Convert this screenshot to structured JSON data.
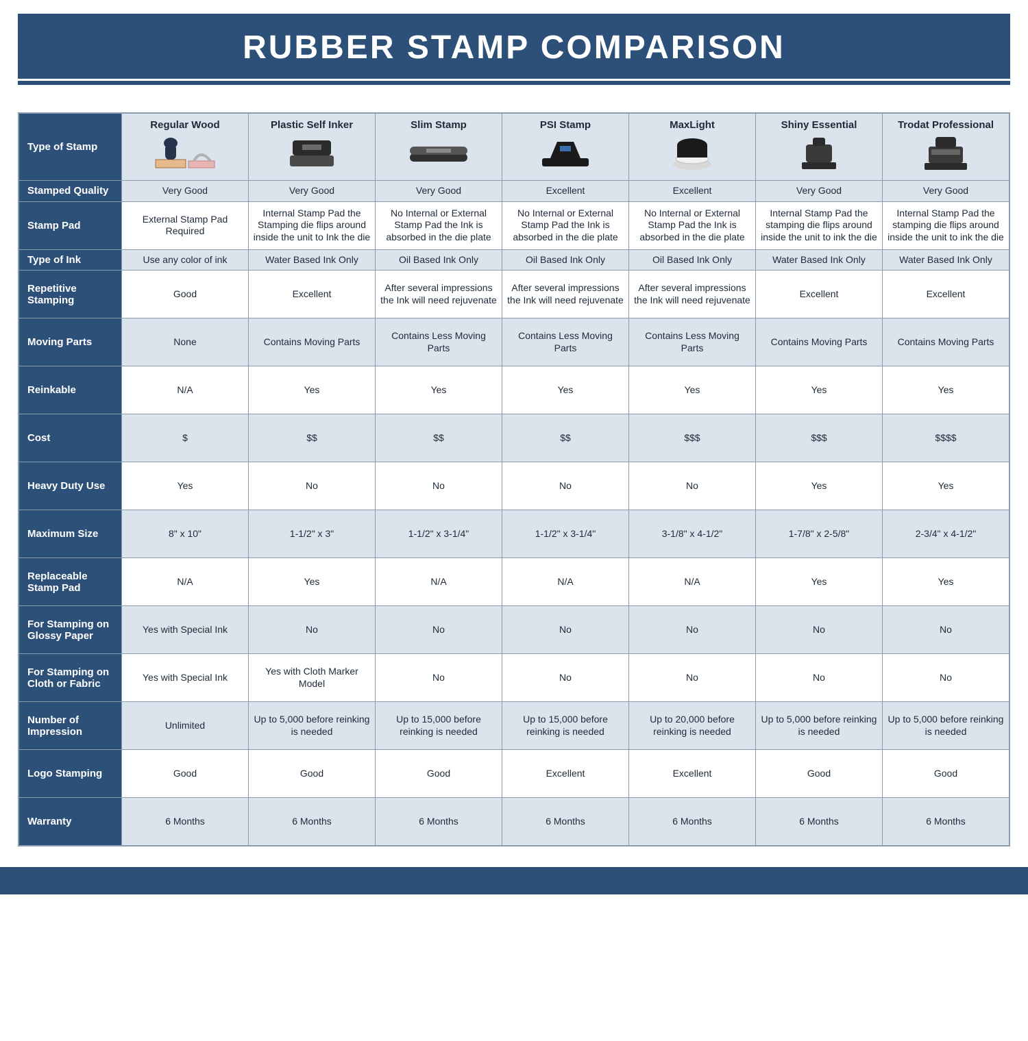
{
  "title": "RUBBER STAMP COMPARISON",
  "colors": {
    "brand_navy": "#2d5078",
    "zebra_bg": "#dbe3ec",
    "border": "#8a9db0",
    "text": "#1e2a38",
    "white": "#ffffff"
  },
  "table": {
    "corner_label": "Type of Stamp",
    "columns": [
      {
        "label": "Regular Wood",
        "icon": "stamp-wood-icon"
      },
      {
        "label": "Plastic Self Inker",
        "icon": "stamp-selfinker-icon"
      },
      {
        "label": "Slim Stamp",
        "icon": "stamp-slim-icon"
      },
      {
        "label": "PSI Stamp",
        "icon": "stamp-psi-icon"
      },
      {
        "label": "MaxLight",
        "icon": "stamp-maxlight-icon"
      },
      {
        "label": "Shiny Essential",
        "icon": "stamp-shiny-icon"
      },
      {
        "label": "Trodat Professional",
        "icon": "stamp-trodat-icon"
      }
    ],
    "rows": [
      {
        "label": "Stamped Quality",
        "zebra": true,
        "cells": [
          "Very Good",
          "Very Good",
          "Very Good",
          "Excellent",
          "Excellent",
          "Very Good",
          "Very Good"
        ]
      },
      {
        "label": "Stamp Pad",
        "zebra": false,
        "tall": true,
        "cells": [
          "External Stamp Pad Required",
          "Internal Stamp Pad the Stamping die flips around inside the unit to Ink the die",
          "No Internal or External Stamp Pad the Ink is absorbed in the die plate",
          "No Internal or External Stamp Pad the Ink is absorbed in the die plate",
          "No Internal or External Stamp Pad the Ink is absorbed in the die plate",
          "Internal Stamp Pad the stamping die flips around inside the unit to ink the die",
          "Internal Stamp Pad the stamping die flips around inside the unit to ink the die"
        ]
      },
      {
        "label": "Type of Ink",
        "zebra": true,
        "cells": [
          "Use any color of ink",
          "Water Based Ink Only",
          "Oil Based Ink Only",
          "Oil Based Ink Only",
          "Oil Based Ink Only",
          "Water Based Ink Only",
          "Water Based Ink Only"
        ]
      },
      {
        "label": "Repetitive Stamping",
        "zebra": false,
        "tall": true,
        "cells": [
          "Good",
          "Excellent",
          "After several impressions the Ink will need rejuvenate",
          "After several impressions the Ink will need rejuvenate",
          "After several impressions the Ink will need rejuvenate",
          "Excellent",
          "Excellent"
        ]
      },
      {
        "label": "Moving Parts",
        "zebra": true,
        "tall": true,
        "cells": [
          "None",
          "Contains Moving Parts",
          "Contains Less Moving Parts",
          "Contains Less Moving Parts",
          "Contains Less Moving Parts",
          "Contains Moving Parts",
          "Contains Moving Parts"
        ]
      },
      {
        "label": "Reinkable",
        "zebra": false,
        "tall": true,
        "cells": [
          "N/A",
          "Yes",
          "Yes",
          "Yes",
          "Yes",
          "Yes",
          "Yes"
        ]
      },
      {
        "label": "Cost",
        "zebra": true,
        "tall": true,
        "cells": [
          "$",
          "$$",
          "$$",
          "$$",
          "$$$",
          "$$$",
          "$$$$"
        ]
      },
      {
        "label": "Heavy Duty Use",
        "zebra": false,
        "tall": true,
        "cells": [
          "Yes",
          "No",
          "No",
          "No",
          "No",
          "Yes",
          "Yes"
        ]
      },
      {
        "label": "Maximum Size",
        "zebra": true,
        "tall": true,
        "cells": [
          "8\" x 10\"",
          "1-1/2\" x 3\"",
          "1-1/2\" x 3-1/4\"",
          "1-1/2\" x 3-1/4\"",
          "3-1/8\" x 4-1/2\"",
          "1-7/8\" x 2-5/8\"",
          "2-3/4\" x 4-1/2\""
        ]
      },
      {
        "label": "Replaceable Stamp Pad",
        "zebra": false,
        "tall": true,
        "cells": [
          "N/A",
          "Yes",
          "N/A",
          "N/A",
          "N/A",
          "Yes",
          "Yes"
        ]
      },
      {
        "label": "For Stamping on Glossy Paper",
        "zebra": true,
        "tall": true,
        "cells": [
          "Yes with Special Ink",
          "No",
          "No",
          "No",
          "No",
          "No",
          "No"
        ]
      },
      {
        "label": "For Stamping on Cloth or Fabric",
        "zebra": false,
        "tall": true,
        "cells": [
          "Yes with Special Ink",
          "Yes with Cloth Marker Model",
          "No",
          "No",
          "No",
          "No",
          "No"
        ]
      },
      {
        "label": "Number of Impression",
        "zebra": true,
        "tall": true,
        "cells": [
          "Unlimited",
          "Up to 5,000 before reinking is needed",
          "Up to 15,000 before reinking is needed",
          "Up to 15,000 before reinking is needed",
          "Up to 20,000 before reinking is needed",
          "Up to 5,000 before reinking is needed",
          "Up to 5,000 before reinking is needed"
        ]
      },
      {
        "label": "Logo Stamping",
        "zebra": false,
        "tall": true,
        "cells": [
          "Good",
          "Good",
          "Good",
          "Excellent",
          "Excellent",
          "Good",
          "Good"
        ]
      },
      {
        "label": "Warranty",
        "zebra": true,
        "tall": true,
        "cells": [
          "6 Months",
          "6 Months",
          "6 Months",
          "6 Months",
          "6 Months",
          "6 Months",
          "6 Months"
        ]
      }
    ]
  }
}
